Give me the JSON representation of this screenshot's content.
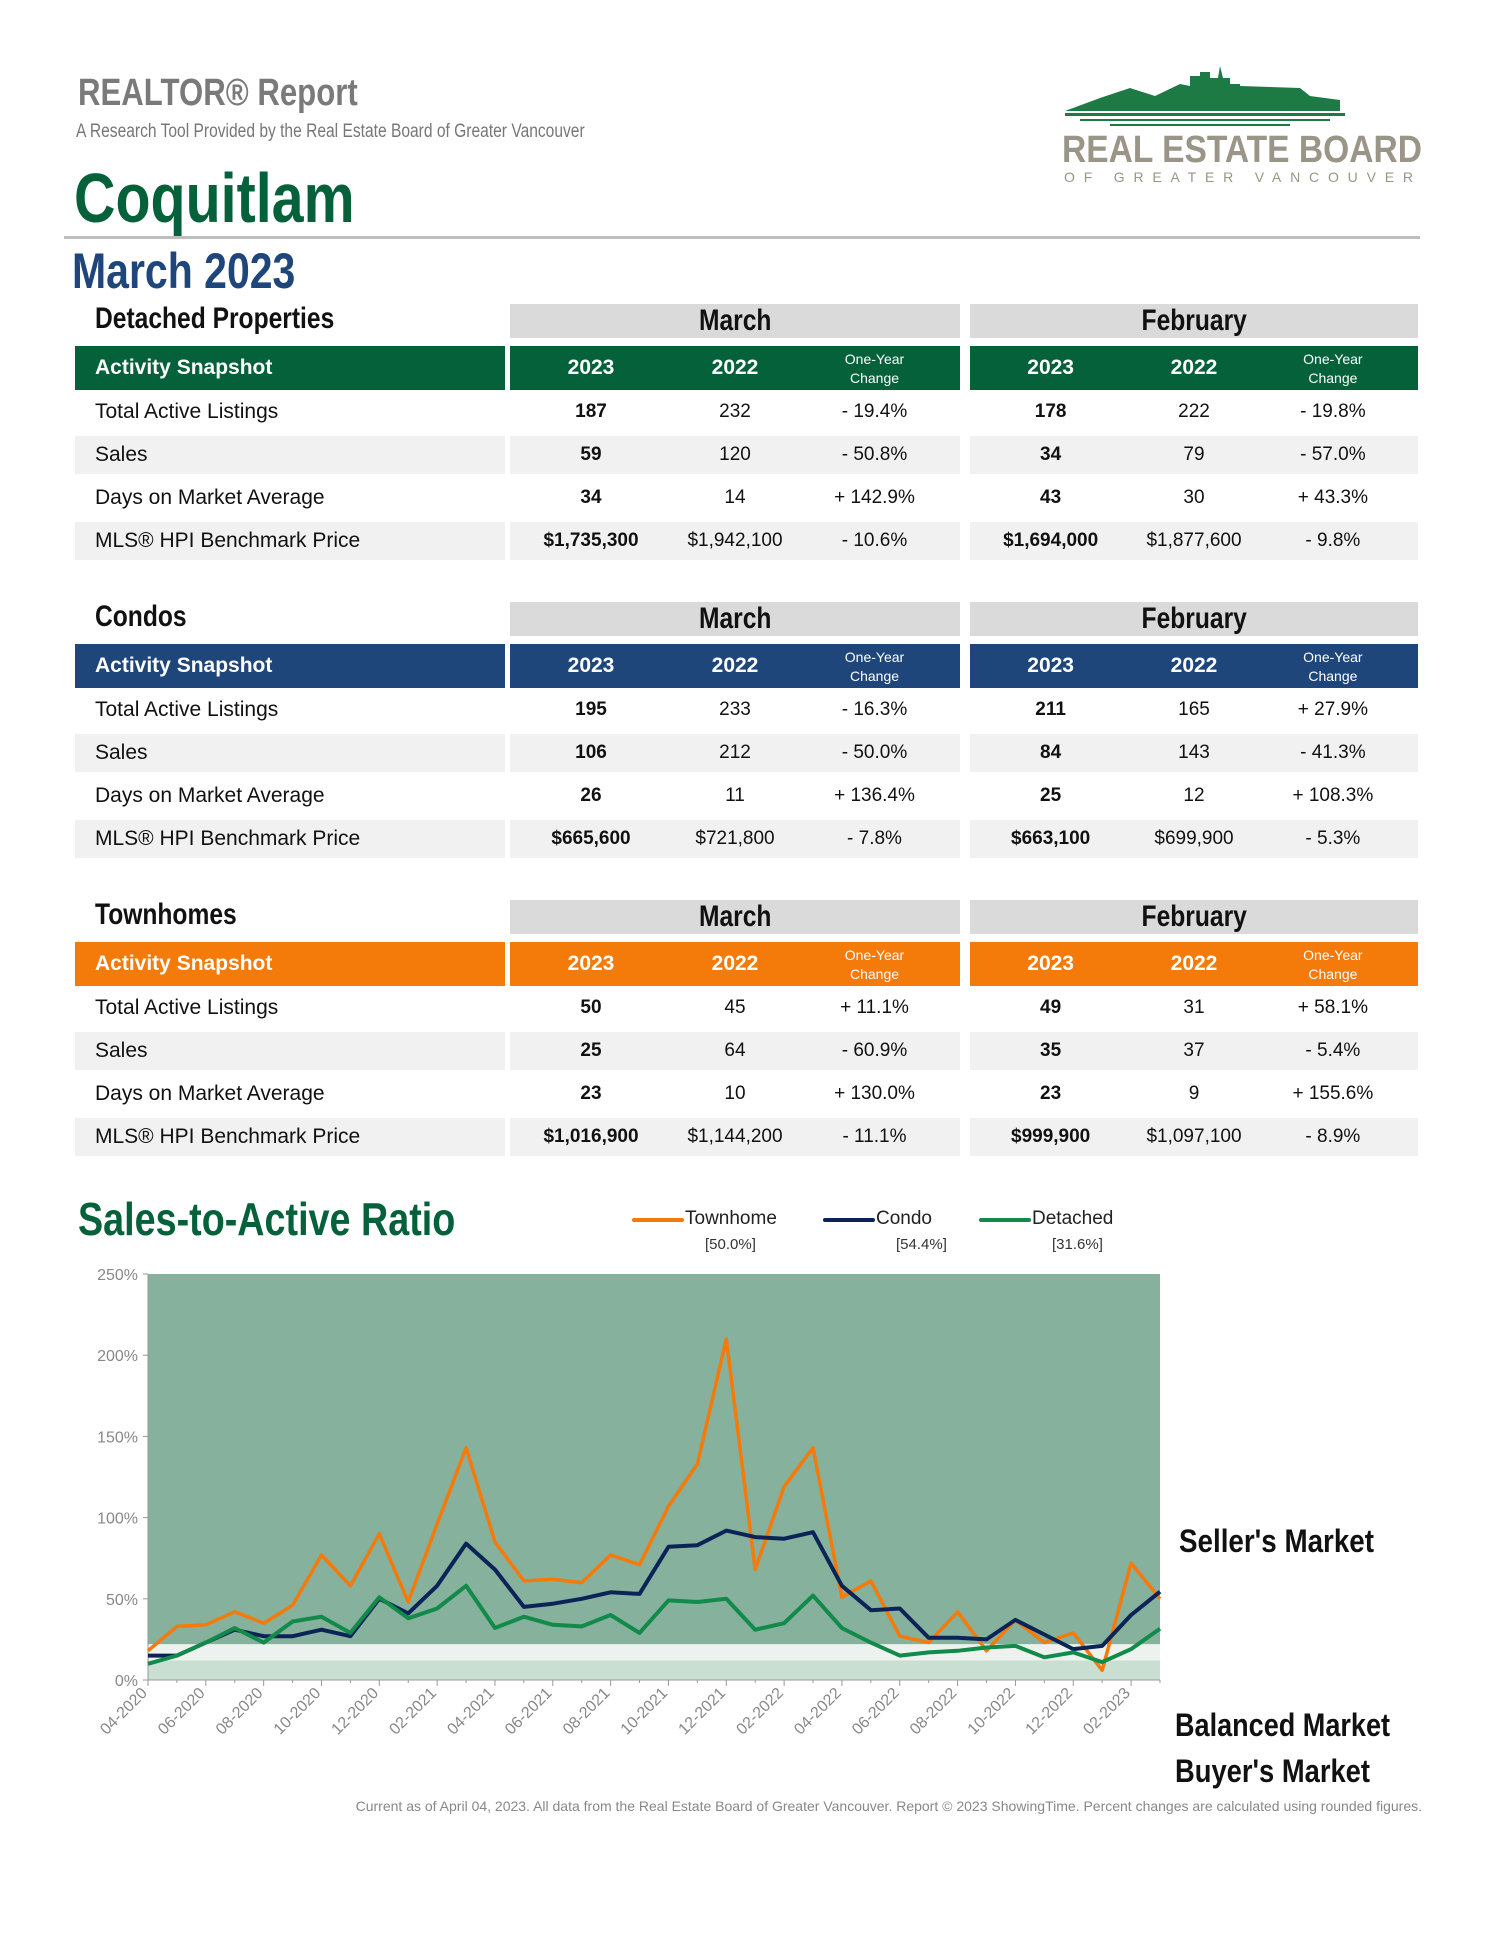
{
  "header": {
    "report_title": "REALTOR® Report",
    "subtitle": "A Research Tool Provided by the Real Estate Board of Greater Vancouver",
    "city": "Coquitlam",
    "period": "March 2023",
    "logo_text": "REAL ESTATE BOARD",
    "logo_subtext": "OF GREATER VANCOUVER"
  },
  "sections": [
    {
      "title": "Detached Properties",
      "color": "#04613a",
      "snapshot_label": "Activity Snapshot",
      "months": [
        "March",
        "February"
      ],
      "years": [
        "2023",
        "2022"
      ],
      "change_label": [
        "One-Year",
        "Change"
      ],
      "rows": [
        {
          "label": "Total Active Listings",
          "values": [
            "187",
            "232",
            "- 19.4%",
            "178",
            "222",
            "- 19.8%"
          ]
        },
        {
          "label": "Sales",
          "values": [
            "59",
            "120",
            "- 50.8%",
            "34",
            "79",
            "- 57.0%"
          ]
        },
        {
          "label": "Days on Market Average",
          "values": [
            "34",
            "14",
            "+ 142.9%",
            "43",
            "30",
            "+ 43.3%"
          ]
        },
        {
          "label": "MLS® HPI Benchmark Price",
          "values": [
            "$1,735,300",
            "$1,942,100",
            "- 10.6%",
            "$1,694,000",
            "$1,877,600",
            "- 9.8%"
          ]
        }
      ]
    },
    {
      "title": "Condos",
      "color": "#1f467a",
      "snapshot_label": "Activity Snapshot",
      "months": [
        "March",
        "February"
      ],
      "years": [
        "2023",
        "2022"
      ],
      "change_label": [
        "One-Year",
        "Change"
      ],
      "rows": [
        {
          "label": "Total Active Listings",
          "values": [
            "195",
            "233",
            "- 16.3%",
            "211",
            "165",
            "+ 27.9%"
          ]
        },
        {
          "label": "Sales",
          "values": [
            "106",
            "212",
            "- 50.0%",
            "84",
            "143",
            "- 41.3%"
          ]
        },
        {
          "label": "Days on Market Average",
          "values": [
            "26",
            "11",
            "+ 136.4%",
            "25",
            "12",
            "+ 108.3%"
          ]
        },
        {
          "label": "MLS® HPI Benchmark Price",
          "values": [
            "$665,600",
            "$721,800",
            "- 7.8%",
            "$663,100",
            "$699,900",
            "- 5.3%"
          ]
        }
      ]
    },
    {
      "title": "Townhomes",
      "color": "#f47a0a",
      "snapshot_label": "Activity Snapshot",
      "months": [
        "March",
        "February"
      ],
      "years": [
        "2023",
        "2022"
      ],
      "change_label": [
        "One-Year",
        "Change"
      ],
      "rows": [
        {
          "label": "Total Active Listings",
          "values": [
            "50",
            "45",
            "+ 11.1%",
            "49",
            "31",
            "+ 58.1%"
          ]
        },
        {
          "label": "Sales",
          "values": [
            "25",
            "64",
            "- 60.9%",
            "35",
            "37",
            "- 5.4%"
          ]
        },
        {
          "label": "Days on Market Average",
          "values": [
            "23",
            "10",
            "+ 130.0%",
            "23",
            "9",
            "+ 155.6%"
          ]
        },
        {
          "label": "MLS® HPI Benchmark Price",
          "values": [
            "$1,016,900",
            "$1,144,200",
            "- 11.1%",
            "$999,900",
            "$1,097,100",
            "- 8.9%"
          ]
        }
      ]
    }
  ],
  "chart_data": {
    "type": "line",
    "title": "Sales-to-Active Ratio",
    "ylim": [
      0,
      250
    ],
    "y_ticks": [
      "0%",
      "50%",
      "100%",
      "150%",
      "200%",
      "250%"
    ],
    "x": [
      "04-2020",
      "05-2020",
      "06-2020",
      "07-2020",
      "08-2020",
      "09-2020",
      "10-2020",
      "11-2020",
      "12-2020",
      "01-2021",
      "02-2021",
      "03-2021",
      "04-2021",
      "05-2021",
      "06-2021",
      "07-2021",
      "08-2021",
      "09-2021",
      "10-2021",
      "11-2021",
      "12-2021",
      "01-2022",
      "02-2022",
      "03-2022",
      "04-2022",
      "05-2022",
      "06-2022",
      "07-2022",
      "08-2022",
      "09-2022",
      "10-2022",
      "11-2022",
      "12-2022",
      "01-2023",
      "02-2023",
      "03-2023"
    ],
    "x_tick_labels": [
      "04-2020",
      "06-2020",
      "08-2020",
      "10-2020",
      "12-2020",
      "02-2021",
      "04-2021",
      "06-2021",
      "08-2021",
      "10-2021",
      "12-2021",
      "02-2022",
      "04-2022",
      "06-2022",
      "08-2022",
      "10-2022",
      "12-2022",
      "02-2023"
    ],
    "series": [
      {
        "name": "Townhome",
        "current": "[50.0%]",
        "color": "#f47a0a",
        "values": [
          18,
          33,
          34,
          42,
          35,
          46,
          77,
          58,
          90,
          48,
          96,
          143,
          85,
          61,
          62,
          60,
          77,
          71,
          107,
          133,
          210,
          68,
          119,
          143,
          51,
          61,
          27,
          23,
          42,
          18,
          37,
          23,
          29,
          6,
          72,
          50
        ]
      },
      {
        "name": "Condo",
        "current": "[54.4%]",
        "color": "#0b2357",
        "values": [
          15,
          15,
          23,
          31,
          27,
          27,
          31,
          27,
          50,
          41,
          58,
          84,
          68,
          45,
          47,
          50,
          54,
          53,
          82,
          83,
          92,
          88,
          87,
          91,
          58,
          43,
          44,
          26,
          26,
          25,
          37,
          28,
          19,
          21,
          40,
          54.4
        ]
      },
      {
        "name": "Detached",
        "current": "[31.6%]",
        "color": "#118a4a",
        "values": [
          10,
          15,
          23,
          32,
          23,
          36,
          39,
          29,
          51,
          38,
          44,
          58,
          32,
          39,
          34,
          33,
          40,
          29,
          49,
          48,
          50,
          31,
          35,
          52,
          32,
          23,
          15,
          17,
          18,
          20,
          21,
          14,
          17,
          11,
          19,
          31.6
        ]
      }
    ],
    "zones": [
      {
        "name": "Seller's Market",
        "from": 22,
        "to": 250,
        "color": "#86b19c"
      },
      {
        "name": "Balanced Market",
        "from": 12,
        "to": 22,
        "color": "#eef2ef"
      },
      {
        "name": "Buyer's Market",
        "from": 0,
        "to": 12,
        "color": "#c9dfd2"
      }
    ],
    "grid": false,
    "legend_position": "top"
  },
  "footer": "Current as of April 04, 2023. All data from the Real Estate Board of Greater Vancouver. Report © 2023 ShowingTime. Percent changes are calculated using rounded figures."
}
